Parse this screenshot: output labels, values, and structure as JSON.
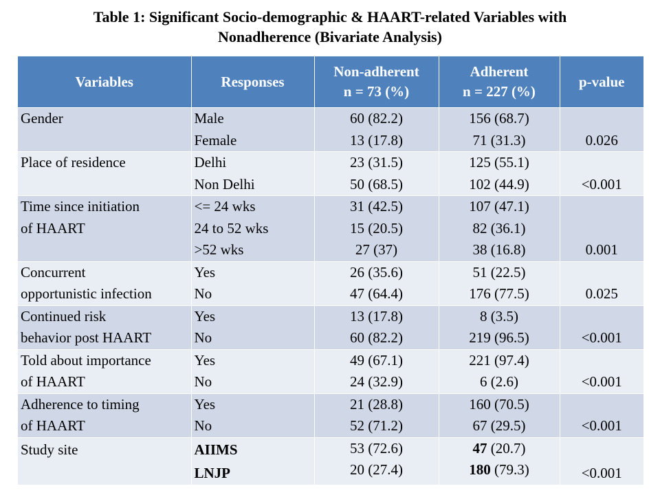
{
  "title": {
    "line1": "Table 1: Significant Socio-demographic & HAART-related Variables with",
    "line2": "Nonadherence (Bivariate Analysis)"
  },
  "headers": {
    "variables": "Variables",
    "responses": "Responses",
    "nonadherent_line1": "Non-adherent",
    "nonadherent_line2": "n = 73 (%)",
    "adherent_line1": "Adherent",
    "adherent_line2": "n = 227 (%)",
    "pvalue": "p-value"
  },
  "rows": [
    {
      "variable": [
        "Gender"
      ],
      "responses": [
        "Male",
        "Female"
      ],
      "nonadherent": [
        "60 (82.2)",
        "13 (17.8)"
      ],
      "adherent": [
        "156 (68.7)",
        "71 (31.3)"
      ],
      "pvalue": "0.026"
    },
    {
      "variable": [
        "Place of residence"
      ],
      "responses": [
        "Delhi",
        "Non Delhi"
      ],
      "nonadherent": [
        "23 (31.5)",
        "50 (68.5)"
      ],
      "adherent": [
        "125 (55.1)",
        "102 (44.9)"
      ],
      "pvalue": "<0.001"
    },
    {
      "variable": [
        "Time since initiation",
        "of HAART"
      ],
      "responses": [
        "<= 24 wks",
        "24 to 52 wks",
        ">52 wks"
      ],
      "nonadherent": [
        "31 (42.5)",
        "15 (20.5)",
        "27 (37)"
      ],
      "adherent": [
        "107 (47.1)",
        "82 (36.1)",
        "38 (16.8)"
      ],
      "pvalue": "0.001"
    },
    {
      "variable": [
        "Concurrent",
        "opportunistic infection"
      ],
      "responses": [
        "Yes",
        "No"
      ],
      "nonadherent": [
        "26 (35.6)",
        "47 (64.4)"
      ],
      "adherent": [
        "51 (22.5)",
        "176 (77.5)"
      ],
      "pvalue": "0.025"
    },
    {
      "variable": [
        "Continued risk",
        "behavior post HAART"
      ],
      "responses": [
        "Yes",
        "No"
      ],
      "nonadherent": [
        "13 (17.8)",
        "60 (82.2)"
      ],
      "adherent": [
        "8 (3.5)",
        "219 (96.5)"
      ],
      "pvalue": "<0.001"
    },
    {
      "variable": [
        "Told about importance",
        "of HAART"
      ],
      "responses": [
        "Yes",
        "No"
      ],
      "nonadherent": [
        "49 (67.1)",
        "24 (32.9)"
      ],
      "adherent": [
        "221 (97.4)",
        "6 (2.6)"
      ],
      "pvalue": "<0.001"
    },
    {
      "variable": [
        "Adherence to timing",
        "of HAART"
      ],
      "responses": [
        "Yes",
        "No"
      ],
      "nonadherent": [
        "21 (28.8)",
        "52 (71.2)"
      ],
      "adherent": [
        "160 (70.5)",
        "67 (29.5)"
      ],
      "pvalue": "<0.001"
    },
    {
      "variable": [
        "Study site"
      ],
      "responses": [
        "AIIMS",
        "LNJP"
      ],
      "nonadherent": [
        "53 (72.6)",
        "20 (27.4)"
      ],
      "adherent_counts": [
        "47",
        "180"
      ],
      "adherent_pcts": [
        "(20.7)",
        "(79.3)"
      ],
      "pvalue": "<0.001"
    }
  ]
}
